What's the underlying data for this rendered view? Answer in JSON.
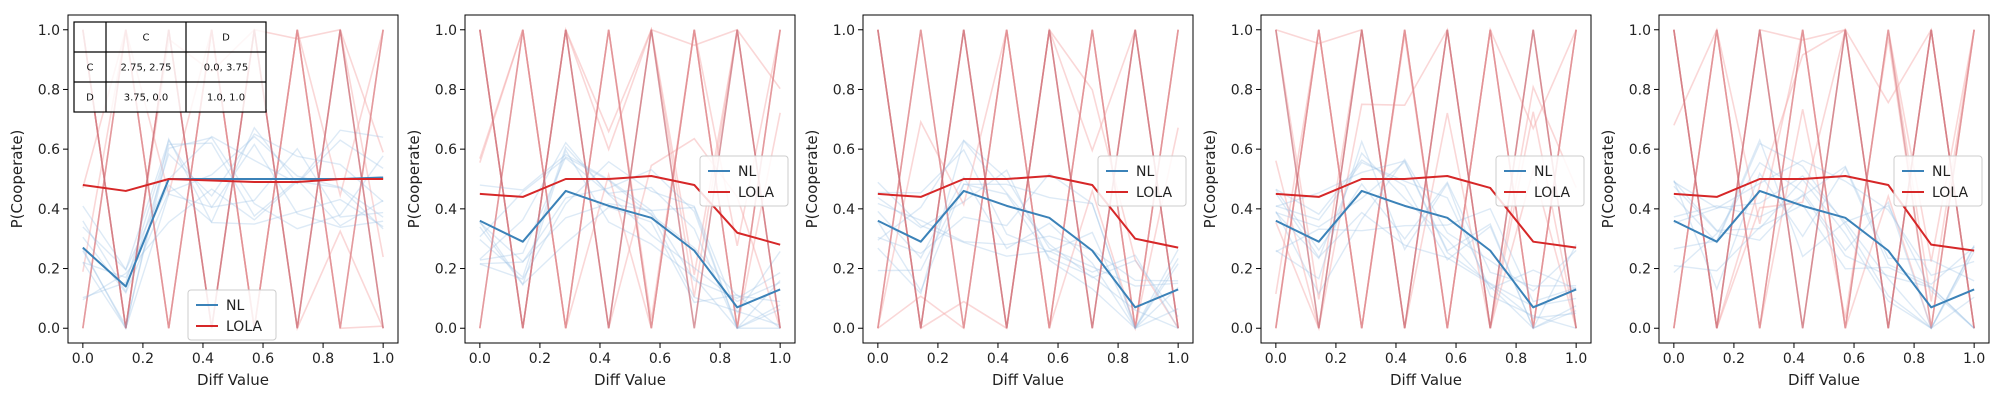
{
  "chart_data": [
    {
      "type": "line",
      "xlabel": "Diff Value",
      "ylabel": "P(Cooperate)",
      "xlim": [
        0,
        1
      ],
      "ylim": [
        0,
        1
      ],
      "xticks": [
        "0.0",
        "0.2",
        "0.4",
        "0.6",
        "0.8",
        "1.0"
      ],
      "yticks": [
        "0.0",
        "0.2",
        "0.4",
        "0.6",
        "0.8",
        "1.0"
      ],
      "x": [
        0,
        0.143,
        0.286,
        0.429,
        0.571,
        0.714,
        0.857,
        1.0
      ],
      "series": [
        {
          "name": "NL",
          "values": [
            0.27,
            0.14,
            0.5,
            0.5,
            0.5,
            0.5,
            0.5,
            0.505
          ]
        },
        {
          "name": "LOLA",
          "values": [
            0.48,
            0.46,
            0.5,
            0.495,
            0.49,
            0.49,
            0.5,
            0.5
          ]
        }
      ],
      "legend": "lower-center",
      "payoff_table": {
        "header": [
          "",
          "C",
          "D"
        ],
        "rows": [
          [
            "C",
            "2.75, 2.75",
            "0.0, 3.75"
          ],
          [
            "D",
            "3.75, 0.0",
            "1.0, 1.0"
          ]
        ]
      }
    },
    {
      "type": "line",
      "xlabel": "Diff Value",
      "ylabel": "P(Cooperate)",
      "xlim": [
        0,
        1
      ],
      "ylim": [
        0,
        1
      ],
      "xticks": [
        "0.0",
        "0.2",
        "0.4",
        "0.6",
        "0.8",
        "1.0"
      ],
      "yticks": [
        "0.0",
        "0.2",
        "0.4",
        "0.6",
        "0.8",
        "1.0"
      ],
      "x": [
        0,
        0.143,
        0.286,
        0.429,
        0.571,
        0.714,
        0.857,
        1.0
      ],
      "series": [
        {
          "name": "NL",
          "values": [
            0.36,
            0.29,
            0.46,
            0.41,
            0.37,
            0.26,
            0.07,
            0.13
          ]
        },
        {
          "name": "LOLA",
          "values": [
            0.45,
            0.44,
            0.5,
            0.5,
            0.51,
            0.48,
            0.32,
            0.28
          ]
        }
      ],
      "legend": "center-right"
    },
    {
      "type": "line",
      "xlabel": "Diff Value",
      "ylabel": "P(Cooperate)",
      "xlim": [
        0,
        1
      ],
      "ylim": [
        0,
        1
      ],
      "xticks": [
        "0.0",
        "0.2",
        "0.4",
        "0.6",
        "0.8",
        "1.0"
      ],
      "yticks": [
        "0.0",
        "0.2",
        "0.4",
        "0.6",
        "0.8",
        "1.0"
      ],
      "x": [
        0,
        0.143,
        0.286,
        0.429,
        0.571,
        0.714,
        0.857,
        1.0
      ],
      "series": [
        {
          "name": "NL",
          "values": [
            0.36,
            0.29,
            0.46,
            0.41,
            0.37,
            0.26,
            0.07,
            0.13
          ]
        },
        {
          "name": "LOLA",
          "values": [
            0.45,
            0.44,
            0.5,
            0.5,
            0.51,
            0.48,
            0.3,
            0.27
          ]
        }
      ],
      "legend": "center-right"
    },
    {
      "type": "line",
      "xlabel": "Diff Value",
      "ylabel": "P(Cooperate)",
      "xlim": [
        0,
        1
      ],
      "ylim": [
        0,
        1
      ],
      "xticks": [
        "0.0",
        "0.2",
        "0.4",
        "0.6",
        "0.8",
        "1.0"
      ],
      "yticks": [
        "0.0",
        "0.2",
        "0.4",
        "0.6",
        "0.8",
        "1.0"
      ],
      "x": [
        0,
        0.143,
        0.286,
        0.429,
        0.571,
        0.714,
        0.857,
        1.0
      ],
      "series": [
        {
          "name": "NL",
          "values": [
            0.36,
            0.29,
            0.46,
            0.41,
            0.37,
            0.26,
            0.07,
            0.13
          ]
        },
        {
          "name": "LOLA",
          "values": [
            0.45,
            0.44,
            0.5,
            0.5,
            0.51,
            0.47,
            0.29,
            0.27
          ]
        }
      ],
      "legend": "center-right"
    },
    {
      "type": "line",
      "xlabel": "Diff Value",
      "ylabel": "P(Cooperate)",
      "xlim": [
        0,
        1
      ],
      "ylim": [
        0,
        1
      ],
      "xticks": [
        "0.0",
        "0.2",
        "0.4",
        "0.6",
        "0.8",
        "1.0"
      ],
      "yticks": [
        "0.0",
        "0.2",
        "0.4",
        "0.6",
        "0.8",
        "1.0"
      ],
      "x": [
        0,
        0.143,
        0.286,
        0.429,
        0.571,
        0.714,
        0.857,
        1.0
      ],
      "series": [
        {
          "name": "NL",
          "values": [
            0.36,
            0.29,
            0.46,
            0.41,
            0.37,
            0.26,
            0.07,
            0.13
          ]
        },
        {
          "name": "LOLA",
          "values": [
            0.45,
            0.44,
            0.5,
            0.5,
            0.51,
            0.48,
            0.28,
            0.26
          ]
        }
      ],
      "legend": "center-right"
    }
  ],
  "colors": {
    "NL": "#3b82b8",
    "LOLA": "#d62728",
    "nl_faint": "#9ec3e6",
    "lola_faint": "#f4a6a6"
  }
}
